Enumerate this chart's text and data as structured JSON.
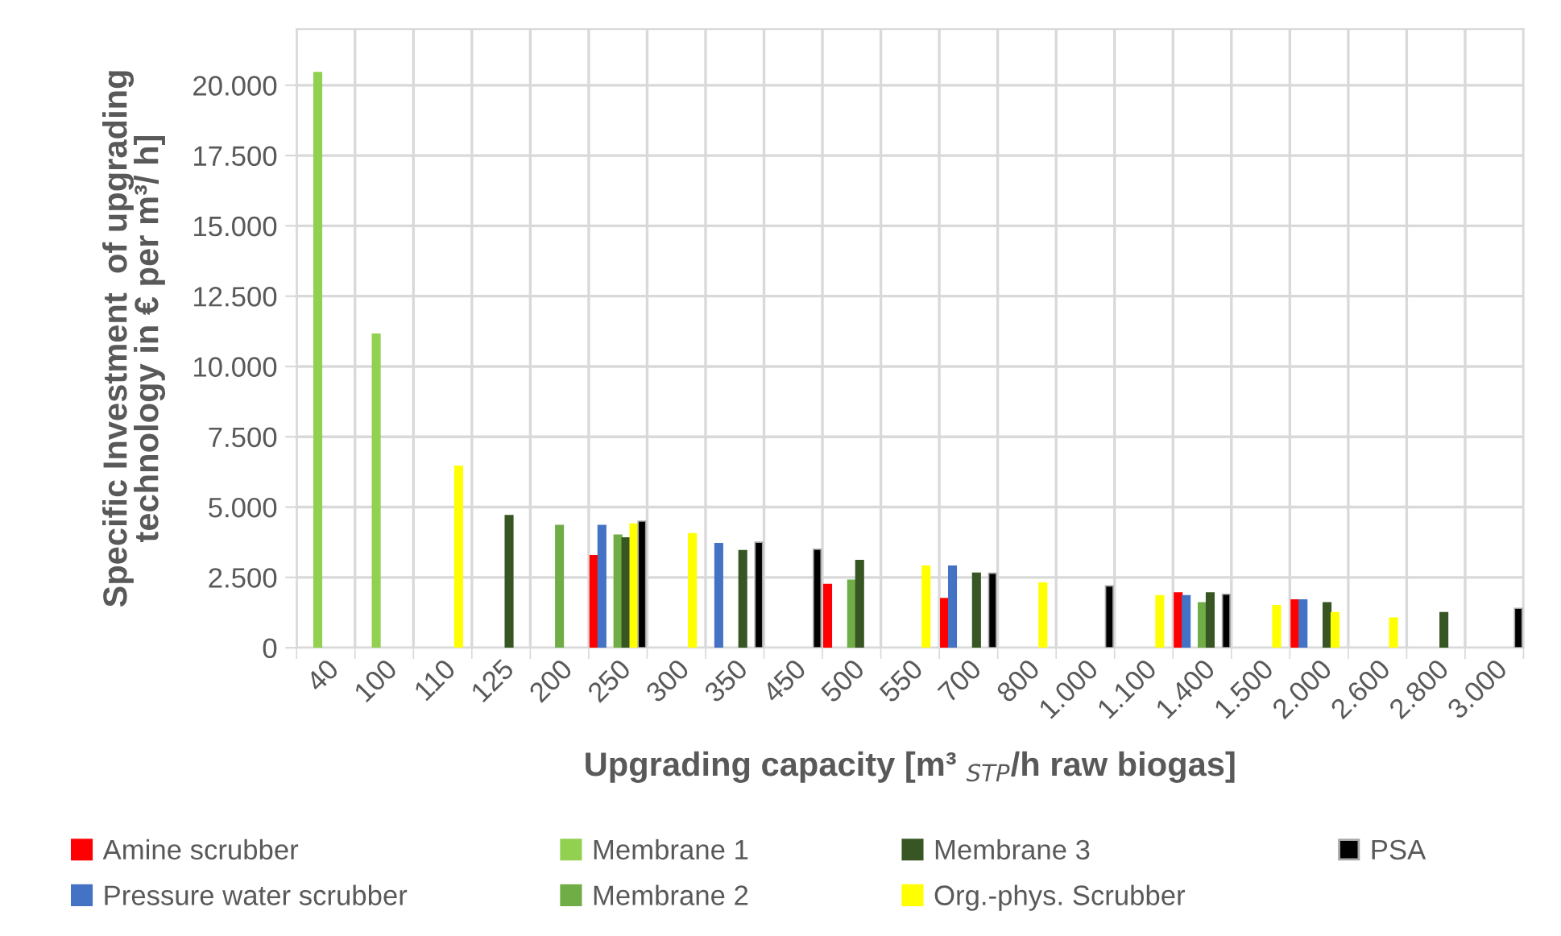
{
  "chart_data": {
    "type": "bar",
    "xlabel": "Upgrading capacity [m³ $_{STP}$/h raw biogas]",
    "ylabel": "Specific Investment  of upgrading\ntechnology in € per m³/ h]",
    "categories": [
      "40",
      "100",
      "110",
      "125",
      "200",
      "250",
      "300",
      "350",
      "450",
      "500",
      "550",
      "700",
      "800",
      "1.000",
      "1.100",
      "1.400",
      "1.500",
      "2.000",
      "2.600",
      "2.800",
      "3.000"
    ],
    "series": [
      {
        "name": "Amine scrubber",
        "color": "#ff0000",
        "values": [
          null,
          null,
          null,
          null,
          null,
          3270,
          null,
          null,
          null,
          2250,
          null,
          1750,
          null,
          null,
          null,
          1950,
          null,
          1700,
          null,
          null,
          null
        ]
      },
      {
        "name": "Pressure water scrubber",
        "color": "#4472c4",
        "values": [
          null,
          null,
          null,
          null,
          null,
          4350,
          null,
          3700,
          null,
          null,
          null,
          2900,
          null,
          null,
          null,
          1850,
          null,
          1700,
          null,
          null,
          null
        ]
      },
      {
        "name": "Membrane 1",
        "color": "#92d050",
        "values": [
          20450,
          11150,
          null,
          null,
          null,
          null,
          null,
          null,
          null,
          null,
          null,
          null,
          null,
          null,
          null,
          null,
          null,
          null,
          null,
          null,
          null
        ]
      },
      {
        "name": "Membrane 2",
        "color": "#70ad47",
        "values": [
          null,
          null,
          null,
          null,
          4350,
          4000,
          null,
          null,
          null,
          2400,
          null,
          null,
          null,
          null,
          null,
          1600,
          null,
          null,
          null,
          null,
          null
        ]
      },
      {
        "name": "Membrane 3",
        "color": "#375623",
        "values": [
          null,
          null,
          null,
          4700,
          null,
          3900,
          null,
          3450,
          null,
          3100,
          null,
          2650,
          null,
          null,
          null,
          1950,
          null,
          1600,
          null,
          1250,
          null
        ]
      },
      {
        "name": "Org.-phys. Scrubber",
        "color": "#ffff00",
        "values": [
          null,
          null,
          6450,
          null,
          null,
          4400,
          4050,
          null,
          null,
          null,
          2900,
          null,
          2300,
          null,
          1850,
          null,
          1500,
          1250,
          1050,
          null,
          null
        ]
      },
      {
        "name": "PSA",
        "color": "#000000",
        "values": [
          null,
          null,
          null,
          null,
          null,
          4500,
          null,
          3750,
          3500,
          null,
          null,
          2650,
          null,
          2200,
          null,
          1900,
          null,
          null,
          null,
          null,
          1400
        ]
      }
    ],
    "ylim": [
      0,
      22000
    ],
    "yticks": [
      0,
      {
        "value": 2500,
        "label": "2.500"
      },
      {
        "value": 5000,
        "label": "5.000"
      },
      {
        "value": 7500,
        "label": "7.500"
      },
      {
        "value": 10000,
        "label": "10.000"
      },
      {
        "value": 12500,
        "label": "12.500"
      },
      {
        "value": 15000,
        "label": "15.000"
      },
      {
        "value": 17500,
        "label": "17.500"
      },
      {
        "value": 20000,
        "label": "20.000"
      }
    ],
    "grid": true,
    "legend": "bottom"
  }
}
